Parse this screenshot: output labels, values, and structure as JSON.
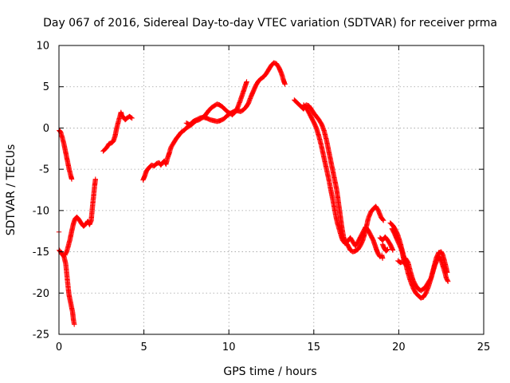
{
  "chart_data": {
    "type": "scatter",
    "title": "Day 067 of 2016, Sidereal Day-to-day VTEC variation (SDTVAR) for receiver prma",
    "xlabel": "GPS time / hours",
    "ylabel": "SDTVAR / TECUs",
    "xlim": [
      0,
      25
    ],
    "ylim": [
      -25,
      10
    ],
    "xticks": [
      0,
      5,
      10,
      15,
      20,
      25
    ],
    "yticks": [
      -25,
      -20,
      -15,
      -10,
      -5,
      0,
      5,
      10
    ],
    "grid": true,
    "marker": "plus",
    "color": "#ff0000",
    "series": [
      {
        "segments": [
          [
            [
              0.02,
              -0.3
            ],
            [
              0.1,
              -0.5
            ],
            [
              0.2,
              -1.2
            ],
            [
              0.3,
              -2.0
            ],
            [
              0.4,
              -3.0
            ],
            [
              0.5,
              -4.0
            ],
            [
              0.6,
              -5.0
            ],
            [
              0.7,
              -5.8
            ],
            [
              0.75,
              -6.2
            ]
          ],
          [
            [
              0.02,
              -14.8
            ],
            [
              0.15,
              -15.2
            ],
            [
              0.3,
              -15.6
            ],
            [
              0.4,
              -16.5
            ],
            [
              0.45,
              -17.5
            ],
            [
              0.5,
              -18.5
            ],
            [
              0.55,
              -19.5
            ],
            [
              0.6,
              -20.3
            ],
            [
              0.7,
              -21.3
            ],
            [
              0.8,
              -22.3
            ],
            [
              0.85,
              -23.2
            ],
            [
              0.9,
              -23.8
            ]
          ],
          [
            [
              0.0,
              -12.6
            ]
          ],
          [
            [
              0.35,
              -15.4
            ],
            [
              0.45,
              -15.0
            ],
            [
              0.55,
              -14.3
            ],
            [
              0.65,
              -13.5
            ],
            [
              0.75,
              -12.5
            ],
            [
              0.85,
              -11.6
            ],
            [
              0.95,
              -11.0
            ],
            [
              1.05,
              -10.8
            ],
            [
              1.15,
              -11.0
            ],
            [
              1.3,
              -11.5
            ],
            [
              1.45,
              -11.9
            ],
            [
              1.6,
              -11.6
            ],
            [
              1.7,
              -11.3
            ],
            [
              1.8,
              -11.7
            ],
            [
              1.9,
              -11.2
            ],
            [
              1.95,
              -10.0
            ],
            [
              2.0,
              -9.0
            ],
            [
              2.05,
              -8.0
            ],
            [
              2.1,
              -7.0
            ],
            [
              2.15,
              -6.2
            ]
          ],
          [
            [
              2.6,
              -2.8
            ],
            [
              2.8,
              -2.4
            ],
            [
              2.95,
              -1.9
            ],
            [
              3.1,
              -1.8
            ],
            [
              3.2,
              -1.6
            ],
            [
              3.3,
              -1.0
            ],
            [
              3.4,
              0.0
            ],
            [
              3.5,
              0.8
            ],
            [
              3.6,
              1.5
            ],
            [
              3.65,
              1.9
            ],
            [
              3.7,
              1.5
            ],
            [
              3.8,
              1.3
            ],
            [
              3.9,
              1.0
            ],
            [
              4.0,
              1.2
            ],
            [
              4.15,
              1.4
            ],
            [
              4.3,
              1.2
            ]
          ],
          [
            [
              4.95,
              -6.3
            ],
            [
              5.05,
              -5.8
            ],
            [
              5.15,
              -5.2
            ],
            [
              5.3,
              -4.8
            ],
            [
              5.45,
              -4.5
            ],
            [
              5.6,
              -4.6
            ],
            [
              5.75,
              -4.3
            ],
            [
              5.9,
              -4.2
            ],
            [
              6.0,
              -4.5
            ],
            [
              6.1,
              -4.2
            ],
            [
              6.2,
              -4.0
            ],
            [
              6.3,
              -4.4
            ],
            [
              6.4,
              -3.6
            ],
            [
              6.5,
              -3.0
            ],
            [
              6.6,
              -2.3
            ],
            [
              6.75,
              -1.8
            ],
            [
              6.9,
              -1.3
            ],
            [
              7.05,
              -0.9
            ],
            [
              7.2,
              -0.5
            ],
            [
              7.35,
              -0.3
            ],
            [
              7.5,
              0.0
            ],
            [
              7.65,
              0.2
            ],
            [
              7.8,
              0.4
            ],
            [
              7.95,
              0.7
            ],
            [
              8.1,
              0.9
            ],
            [
              8.25,
              1.0
            ],
            [
              8.4,
              1.2
            ],
            [
              8.55,
              1.4
            ],
            [
              8.7,
              1.8
            ],
            [
              8.85,
              2.2
            ],
            [
              9.0,
              2.5
            ],
            [
              9.15,
              2.7
            ],
            [
              9.3,
              2.9
            ],
            [
              9.45,
              2.8
            ],
            [
              9.6,
              2.6
            ],
            [
              9.75,
              2.3
            ],
            [
              9.9,
              2.0
            ],
            [
              10.05,
              1.8
            ],
            [
              10.2,
              1.6
            ],
            [
              10.35,
              1.9
            ],
            [
              10.5,
              2.4
            ],
            [
              10.65,
              3.2
            ],
            [
              10.8,
              4.1
            ],
            [
              10.95,
              5.0
            ],
            [
              11.05,
              5.6
            ]
          ],
          [
            [
              7.5,
              0.6
            ],
            [
              7.7,
              0.4
            ],
            [
              7.9,
              0.8
            ],
            [
              8.1,
              1.0
            ],
            [
              8.3,
              1.2
            ],
            [
              8.5,
              1.3
            ],
            [
              8.7,
              1.2
            ],
            [
              8.9,
              1.0
            ],
            [
              9.1,
              0.9
            ],
            [
              9.3,
              0.8
            ],
            [
              9.5,
              0.9
            ],
            [
              9.7,
              1.1
            ],
            [
              9.9,
              1.5
            ],
            [
              10.1,
              1.8
            ],
            [
              10.3,
              2.0
            ],
            [
              10.5,
              2.1
            ],
            [
              10.7,
              2.0
            ],
            [
              10.85,
              2.2
            ],
            [
              11.0,
              2.5
            ],
            [
              11.15,
              3.0
            ],
            [
              11.3,
              3.8
            ],
            [
              11.45,
              4.5
            ],
            [
              11.6,
              5.2
            ],
            [
              11.75,
              5.7
            ],
            [
              11.9,
              6.0
            ],
            [
              12.05,
              6.2
            ],
            [
              12.2,
              6.6
            ],
            [
              12.35,
              7.1
            ],
            [
              12.5,
              7.6
            ],
            [
              12.65,
              7.9
            ],
            [
              12.8,
              7.8
            ],
            [
              12.95,
              7.3
            ],
            [
              13.1,
              6.6
            ],
            [
              13.2,
              5.9
            ],
            [
              13.3,
              5.3
            ]
          ],
          [
            [
              13.85,
              3.4
            ],
            [
              14.05,
              3.0
            ],
            [
              14.25,
              2.6
            ],
            [
              14.4,
              2.3
            ],
            [
              14.55,
              2.8
            ],
            [
              14.7,
              2.7
            ],
            [
              14.85,
              2.3
            ],
            [
              15.0,
              1.8
            ],
            [
              15.15,
              1.4
            ],
            [
              15.3,
              1.0
            ],
            [
              15.45,
              0.5
            ],
            [
              15.6,
              -0.3
            ],
            [
              15.75,
              -1.5
            ],
            [
              15.9,
              -3.0
            ],
            [
              16.05,
              -4.5
            ],
            [
              16.2,
              -6.0
            ],
            [
              16.35,
              -7.5
            ],
            [
              16.45,
              -9.0
            ],
            [
              16.55,
              -10.5
            ],
            [
              16.65,
              -12.0
            ],
            [
              16.75,
              -13.2
            ],
            [
              16.85,
              -13.8
            ],
            [
              17.0,
              -14.2
            ],
            [
              17.15,
              -14.8
            ],
            [
              17.3,
              -15.0
            ],
            [
              17.45,
              -14.9
            ],
            [
              17.6,
              -14.7
            ],
            [
              17.75,
              -14.2
            ],
            [
              17.9,
              -13.5
            ],
            [
              18.05,
              -12.4
            ],
            [
              18.2,
              -11.0
            ],
            [
              18.35,
              -10.2
            ],
            [
              18.5,
              -9.8
            ],
            [
              18.65,
              -9.5
            ],
            [
              18.8,
              -10.0
            ],
            [
              18.95,
              -10.8
            ],
            [
              19.1,
              -11.2
            ]
          ],
          [
            [
              14.4,
              2.8
            ],
            [
              14.6,
              2.3
            ],
            [
              14.8,
              1.5
            ],
            [
              15.0,
              0.7
            ],
            [
              15.15,
              0.0
            ],
            [
              15.3,
              -1.0
            ],
            [
              15.45,
              -2.2
            ],
            [
              15.6,
              -3.6
            ],
            [
              15.75,
              -5.0
            ],
            [
              15.9,
              -6.4
            ],
            [
              16.0,
              -7.5
            ],
            [
              16.1,
              -8.5
            ],
            [
              16.2,
              -9.6
            ],
            [
              16.3,
              -10.7
            ],
            [
              16.4,
              -11.6
            ],
            [
              16.5,
              -12.3
            ],
            [
              16.6,
              -13.0
            ],
            [
              16.7,
              -13.6
            ],
            [
              16.85,
              -14.0
            ],
            [
              17.0,
              -13.7
            ],
            [
              17.15,
              -13.3
            ],
            [
              17.3,
              -13.8
            ],
            [
              17.45,
              -14.3
            ],
            [
              17.6,
              -13.8
            ],
            [
              17.75,
              -13.2
            ],
            [
              17.9,
              -12.6
            ],
            [
              18.05,
              -12.0
            ],
            [
              18.2,
              -12.4
            ],
            [
              18.35,
              -13.0
            ],
            [
              18.5,
              -13.6
            ],
            [
              18.6,
              -14.2
            ],
            [
              18.7,
              -14.8
            ],
            [
              18.8,
              -15.3
            ],
            [
              18.9,
              -15.6
            ]
          ],
          [
            [
              19.5,
              -11.5
            ],
            [
              19.65,
              -11.8
            ],
            [
              19.8,
              -12.3
            ],
            [
              19.95,
              -13.0
            ],
            [
              20.1,
              -14.0
            ],
            [
              20.25,
              -15.2
            ],
            [
              20.4,
              -16.4
            ],
            [
              20.55,
              -17.6
            ],
            [
              20.7,
              -18.6
            ],
            [
              20.85,
              -19.4
            ],
            [
              21.0,
              -20.0
            ],
            [
              21.15,
              -20.3
            ],
            [
              21.3,
              -20.6
            ],
            [
              21.45,
              -20.5
            ],
            [
              21.6,
              -20.0
            ],
            [
              21.75,
              -19.2
            ],
            [
              21.9,
              -18.2
            ],
            [
              22.05,
              -17.0
            ],
            [
              22.2,
              -15.8
            ],
            [
              22.35,
              -15.1
            ],
            [
              22.5,
              -15.0
            ],
            [
              22.6,
              -15.4
            ],
            [
              22.7,
              -16.2
            ],
            [
              22.8,
              -17.0
            ],
            [
              22.85,
              -17.5
            ]
          ],
          [
            [
              19.6,
              -12.2
            ],
            [
              19.75,
              -12.8
            ],
            [
              19.9,
              -13.5
            ],
            [
              20.05,
              -14.2
            ],
            [
              20.2,
              -15.0
            ],
            [
              20.3,
              -16.0
            ],
            [
              20.4,
              -15.8
            ],
            [
              20.55,
              -16.3
            ],
            [
              20.7,
              -17.5
            ],
            [
              20.85,
              -18.5
            ],
            [
              21.0,
              -19.1
            ],
            [
              21.15,
              -19.5
            ],
            [
              21.3,
              -19.7
            ],
            [
              21.45,
              -19.5
            ],
            [
              21.6,
              -19.2
            ],
            [
              21.75,
              -18.7
            ],
            [
              21.9,
              -18.2
            ],
            [
              22.0,
              -17.5
            ],
            [
              22.1,
              -16.8
            ],
            [
              22.25,
              -16.0
            ],
            [
              22.4,
              -15.6
            ],
            [
              22.55,
              -16.4
            ],
            [
              22.7,
              -17.4
            ],
            [
              22.8,
              -18.2
            ],
            [
              22.9,
              -18.6
            ]
          ],
          [
            [
              18.9,
              -13.3
            ],
            [
              19.05,
              -13.6
            ],
            [
              19.2,
              -13.2
            ],
            [
              19.35,
              -13.6
            ],
            [
              19.5,
              -14.1
            ],
            [
              19.65,
              -14.8
            ]
          ],
          [
            [
              19.95,
              -16.1
            ],
            [
              20.1,
              -16.3
            ],
            [
              20.25,
              -16.2
            ],
            [
              20.4,
              -16.5
            ],
            [
              20.55,
              -16.9
            ]
          ],
          [
            [
              19.05,
              -14.1
            ],
            [
              19.15,
              -14.6
            ],
            [
              19.25,
              -14.9
            ],
            [
              19.35,
              -14.7
            ]
          ],
          [
            [
              19.0,
              -15.4
            ],
            [
              19.05,
              -15.8
            ]
          ]
        ]
      }
    ]
  }
}
